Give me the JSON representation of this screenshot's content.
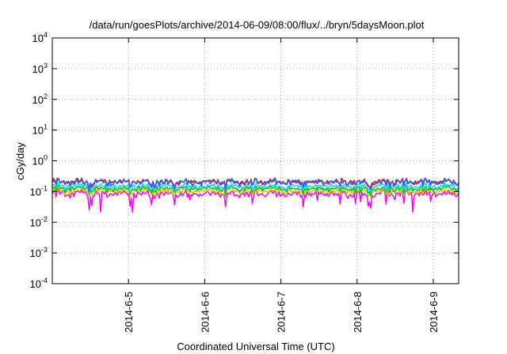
{
  "chart_data": {
    "type": "line",
    "title": "/data/run/goesPlots/archive/2014-06-09/08:00/flux/../bryn/5daysMoon.plot",
    "xlabel": "Coordinated Universal Time (UTC)",
    "ylabel": "cGy/day",
    "yscale": "log",
    "ylim": [
      0.0001,
      10000
    ],
    "xlim": [
      "2014-06-04 00:00",
      "2014-06-09 08:00"
    ],
    "grid": true,
    "legend": "none",
    "y_ticks": [
      {
        "base": "10",
        "exp": "-4",
        "value": 0.0001
      },
      {
        "base": "10",
        "exp": "-3",
        "value": 0.001
      },
      {
        "base": "10",
        "exp": "-2",
        "value": 0.01
      },
      {
        "base": "10",
        "exp": "-1",
        "value": 0.1
      },
      {
        "base": "10",
        "exp": "0",
        "value": 1
      },
      {
        "base": "10",
        "exp": "1",
        "value": 10
      },
      {
        "base": "10",
        "exp": "2",
        "value": 100
      },
      {
        "base": "10",
        "exp": "3",
        "value": 1000
      },
      {
        "base": "10",
        "exp": "4",
        "value": 10000
      }
    ],
    "x_ticks": [
      {
        "label": "2014-6-5",
        "value": "2014-06-05"
      },
      {
        "label": "2014-6-6",
        "value": "2014-06-06"
      },
      {
        "label": "2014-6-7",
        "value": "2014-06-07"
      },
      {
        "label": "2014-6-8",
        "value": "2014-06-08"
      },
      {
        "label": "2014-6-9",
        "value": "2014-06-09"
      }
    ],
    "series": [
      {
        "color": "#ff00ff",
        "level": 0.085,
        "noise": 0.3
      },
      {
        "color": "#e8c000",
        "level": 0.105,
        "noise": 0.22
      },
      {
        "color": "#00c000",
        "level": 0.125,
        "noise": 0.2
      },
      {
        "color": "#00e0e0",
        "level": 0.15,
        "noise": 0.22
      },
      {
        "color": "#e00000",
        "level": 0.21,
        "noise": 0.25
      },
      {
        "color": "#3060ff",
        "level": 0.2,
        "noise": 0.25
      }
    ]
  }
}
